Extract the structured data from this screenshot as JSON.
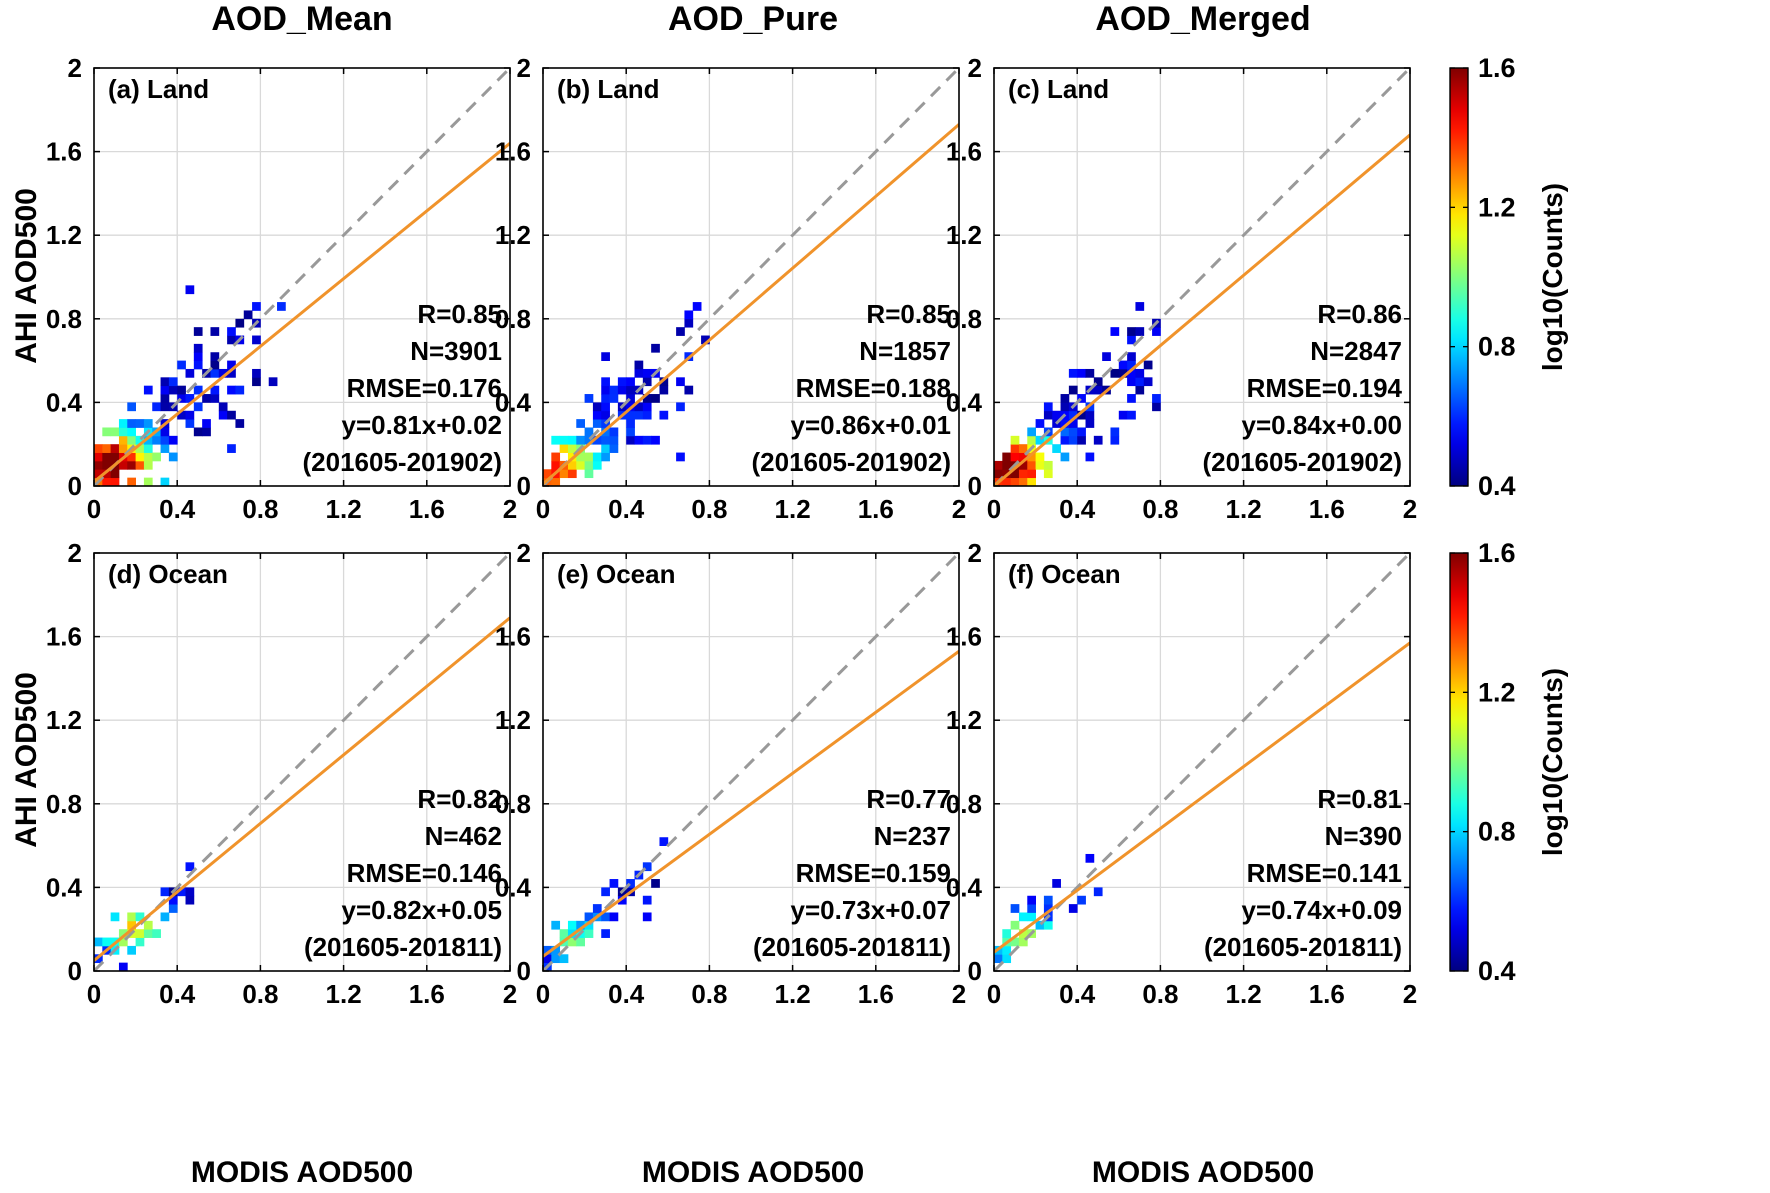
{
  "column_titles": [
    "AOD_Mean",
    "AOD_Pure",
    "AOD_Merged"
  ],
  "xlabel": "MODIS AOD500",
  "ylabel": "AHI AOD500",
  "colorbars": [
    {
      "label": "log10(Counts)",
      "ticks": [
        "0.4",
        "0.8",
        "1.2",
        "1.6"
      ],
      "range": [
        0.4,
        1.6
      ]
    },
    {
      "label": "log10(Counts)",
      "ticks": [
        "0.4",
        "0.8",
        "1.2",
        "1.6"
      ],
      "range": [
        0.4,
        1.6
      ]
    }
  ],
  "colors": {
    "fit_line": "#f0932b",
    "one_to_one": "#999999",
    "grid": "#d9d9d9"
  },
  "chart_data": [
    {
      "type": "heatmap",
      "panel": "(a) Land",
      "column": "AOD_Mean",
      "xlim": [
        0,
        2
      ],
      "ylim": [
        0,
        2
      ],
      "xticks": [
        "0",
        "0.4",
        "0.8",
        "1.2",
        "1.6",
        "2"
      ],
      "yticks": [
        "0",
        "0.4",
        "0.8",
        "1.2",
        "1.6",
        "2"
      ],
      "stats": [
        "R=0.85",
        "N=3901",
        "RMSE=0.176",
        "y=0.81x+0.02",
        "(201605-201902)"
      ],
      "fit": {
        "slope": 0.81,
        "intercept": 0.02
      },
      "density": {
        "kind": "land",
        "spread": 0.8,
        "max": 1.0,
        "peak": [
          0.08,
          0.1
        ]
      }
    },
    {
      "type": "heatmap",
      "panel": "(b) Land",
      "column": "AOD_Pure",
      "xlim": [
        0,
        2
      ],
      "ylim": [
        0,
        2
      ],
      "xticks": [
        "0",
        "0.4",
        "0.8",
        "1.2",
        "1.6",
        "2"
      ],
      "yticks": [
        "0",
        "0.4",
        "0.8",
        "1.2",
        "1.6",
        "2"
      ],
      "stats": [
        "R=0.85",
        "N=1857",
        "RMSE=0.188",
        "y=0.86x+0.01",
        "(201605-201902)"
      ],
      "fit": {
        "slope": 0.86,
        "intercept": 0.01
      },
      "density": {
        "kind": "land",
        "spread": 0.75,
        "max": 0.75,
        "peak": [
          0.06,
          0.08
        ]
      }
    },
    {
      "type": "heatmap",
      "panel": "(c) Land",
      "column": "AOD_Merged",
      "xlim": [
        0,
        2
      ],
      "ylim": [
        0,
        2
      ],
      "xticks": [
        "0",
        "0.4",
        "0.8",
        "1.2",
        "1.6",
        "2"
      ],
      "yticks": [
        "0",
        "0.4",
        "0.8",
        "1.2",
        "1.6",
        "2"
      ],
      "stats": [
        "R=0.86",
        "N=2847",
        "RMSE=0.194",
        "y=0.84x+0.00",
        "(201605-201902)"
      ],
      "fit": {
        "slope": 0.84,
        "intercept": 0.0
      },
      "density": {
        "kind": "land",
        "spread": 0.82,
        "max": 0.95,
        "peak": [
          0.07,
          0.09
        ]
      }
    },
    {
      "type": "heatmap",
      "panel": "(d) Ocean",
      "column": "AOD_Mean",
      "xlim": [
        0,
        2
      ],
      "ylim": [
        0,
        2
      ],
      "xticks": [
        "0",
        "0.4",
        "0.8",
        "1.2",
        "1.6",
        "2"
      ],
      "yticks": [
        "0",
        "0.4",
        "0.8",
        "1.2",
        "1.6",
        "2"
      ],
      "stats": [
        "R=0.82",
        "N=462",
        "RMSE=0.146",
        "y=0.82x+0.05",
        "(201605-201811)"
      ],
      "fit": {
        "slope": 0.82,
        "intercept": 0.05
      },
      "density": {
        "kind": "ocean",
        "spread": 0.55,
        "max": 0.55,
        "peak": [
          0.18,
          0.2
        ]
      }
    },
    {
      "type": "heatmap",
      "panel": "(e) Ocean",
      "column": "AOD_Pure",
      "xlim": [
        0,
        2
      ],
      "ylim": [
        0,
        2
      ],
      "xticks": [
        "0",
        "0.4",
        "0.8",
        "1.2",
        "1.6",
        "2"
      ],
      "yticks": [
        "0",
        "0.4",
        "0.8",
        "1.2",
        "1.6",
        "2"
      ],
      "stats": [
        "R=0.77",
        "N=237",
        "RMSE=0.159",
        "y=0.73x+0.07",
        "(201605-201811)"
      ],
      "fit": {
        "slope": 0.73,
        "intercept": 0.07
      },
      "density": {
        "kind": "ocean",
        "spread": 0.5,
        "max": 0.35,
        "peak": [
          0.15,
          0.15
        ]
      }
    },
    {
      "type": "heatmap",
      "panel": "(f) Ocean",
      "column": "AOD_Merged",
      "xlim": [
        0,
        2
      ],
      "ylim": [
        0,
        2
      ],
      "xticks": [
        "0",
        "0.4",
        "0.8",
        "1.2",
        "1.6",
        "2"
      ],
      "yticks": [
        "0",
        "0.4",
        "0.8",
        "1.2",
        "1.6",
        "2"
      ],
      "stats": [
        "R=0.81",
        "N=390",
        "RMSE=0.141",
        "y=0.74x+0.09",
        "(201605-201811)"
      ],
      "fit": {
        "slope": 0.74,
        "intercept": 0.09
      },
      "density": {
        "kind": "ocean",
        "spread": 0.5,
        "max": 0.5,
        "peak": [
          0.14,
          0.16
        ]
      }
    }
  ]
}
